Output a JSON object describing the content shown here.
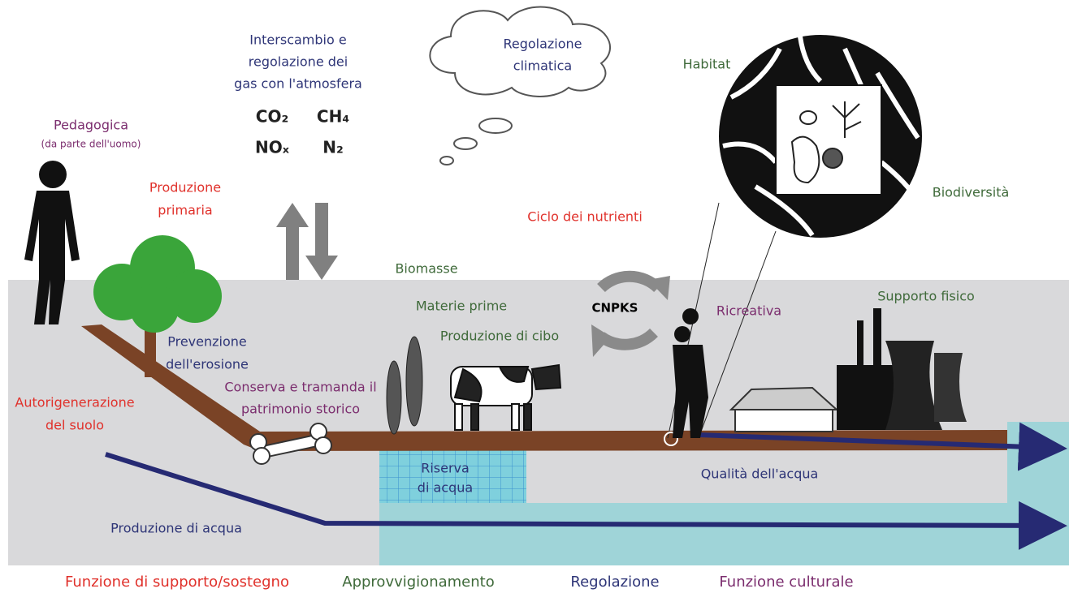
{
  "labels": {
    "gas_exchange": [
      "Interscambio e",
      "regolazione dei",
      "gas con l'atmosfera"
    ],
    "gases": [
      "CO₂",
      "CH₄",
      "NOₓ",
      "N₂"
    ],
    "climate": [
      "Regolazione",
      "climatica"
    ],
    "habitat": "Habitat",
    "biodiversity": "Biodiversità",
    "pedagogic": [
      "Pedagogica",
      "(da parte dell'uomo)"
    ],
    "primary_production": [
      "Produzione",
      "primaria"
    ],
    "nutrient_cycle": "Ciclo dei nutrienti",
    "biomass": "Biomasse",
    "raw_materials": "Materie prime",
    "food": "Produzione di cibo",
    "cnpks": "CNPKS",
    "recreational": "Ricreativa",
    "physical_support": "Supporto fisico",
    "erosion": [
      "Prevenzione",
      "dell'erosione"
    ],
    "heritage": [
      "Conserva e tramanda il",
      "patrimonio storico"
    ],
    "soil_regeneration": [
      "Autorigenerazione",
      "del suolo"
    ],
    "water_reserve": [
      "Riserva",
      "di acqua"
    ],
    "water_quality": "Qualità dell'acqua",
    "water_production": "Produzione di acqua"
  },
  "legend": [
    "Funzione di supporto/sostegno",
    "Approvvigionamento",
    "Regolazione",
    "Funzione culturale"
  ]
}
